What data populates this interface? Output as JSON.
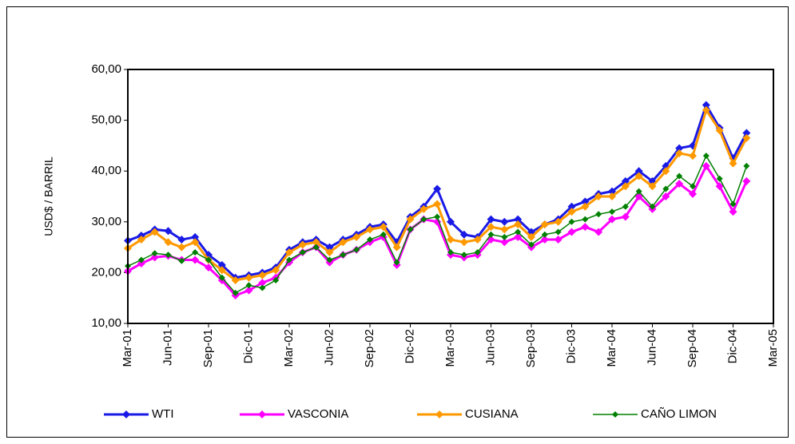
{
  "chart_data": {
    "type": "line",
    "ylabel": "USD$ / BARRIL",
    "x": [
      0,
      1,
      2,
      3,
      4,
      5,
      6,
      7,
      8,
      9,
      10,
      11,
      12,
      13,
      14,
      15,
      16,
      17,
      18,
      19,
      20,
      21,
      22,
      23,
      24,
      25,
      26,
      27,
      28,
      29,
      30,
      31,
      32,
      33,
      34,
      35,
      36,
      37,
      38,
      39,
      40,
      41,
      42,
      43,
      44,
      45,
      46
    ],
    "xlim": [
      0,
      48
    ],
    "xticks": [
      {
        "value": 0,
        "label": "Mar-01"
      },
      {
        "value": 3,
        "label": "Jun-01"
      },
      {
        "value": 6,
        "label": "Sep-01"
      },
      {
        "value": 9,
        "label": "Dic-01"
      },
      {
        "value": 12,
        "label": "Mar-02"
      },
      {
        "value": 15,
        "label": "Jun-02"
      },
      {
        "value": 18,
        "label": "Sep-02"
      },
      {
        "value": 21,
        "label": "Dic-02"
      },
      {
        "value": 24,
        "label": "Mar-03"
      },
      {
        "value": 27,
        "label": "Jun-03"
      },
      {
        "value": 30,
        "label": "Sep-03"
      },
      {
        "value": 33,
        "label": "Dic-03"
      },
      {
        "value": 36,
        "label": "Mar-04"
      },
      {
        "value": 39,
        "label": "Jun-04"
      },
      {
        "value": 42,
        "label": "Sep-04"
      },
      {
        "value": 45,
        "label": "Dic-04"
      },
      {
        "value": 48,
        "label": "Mar-05"
      }
    ],
    "ylim": [
      10,
      60
    ],
    "yticks": [
      {
        "value": 10,
        "label": "10,00"
      },
      {
        "value": 20,
        "label": "20,00"
      },
      {
        "value": 30,
        "label": "30,00"
      },
      {
        "value": 40,
        "label": "40,00"
      },
      {
        "value": 50,
        "label": "50,00"
      },
      {
        "value": 60,
        "label": "60,00"
      }
    ],
    "series": [
      {
        "name": "WTI",
        "color": "#1a1ae6",
        "values": [
          26.3,
          27.3,
          28.5,
          28.2,
          26.5,
          27.0,
          23.5,
          21.5,
          19.0,
          19.5,
          20.0,
          21.0,
          24.5,
          26.0,
          26.5,
          25.0,
          26.5,
          27.5,
          29.0,
          29.5,
          26.0,
          31.0,
          33.0,
          36.5,
          30.0,
          27.5,
          27.0,
          30.5,
          30.0,
          30.5,
          28.0,
          29.5,
          30.5,
          33.0,
          34.0,
          35.5,
          36.0,
          38.0,
          40.0,
          38.0,
          41.0,
          44.5,
          45.0,
          53.0,
          48.5,
          42.5,
          47.5
        ]
      },
      {
        "name": "VASCONIA",
        "color": "#ff00ff",
        "values": [
          20.3,
          21.8,
          23.0,
          23.3,
          22.5,
          22.5,
          21.0,
          18.5,
          15.5,
          16.5,
          18.0,
          19.0,
          22.0,
          24.0,
          25.0,
          22.0,
          23.5,
          24.5,
          26.0,
          27.0,
          21.5,
          28.5,
          30.5,
          30.0,
          23.5,
          23.0,
          23.5,
          26.5,
          26.0,
          27.0,
          25.0,
          26.5,
          26.5,
          28.0,
          29.0,
          28.0,
          30.5,
          31.0,
          35.0,
          32.5,
          35.0,
          37.5,
          35.5,
          41.0,
          37.0,
          32.0,
          38.0
        ]
      },
      {
        "name": "CUSIANA",
        "color": "#ff9900",
        "values": [
          24.8,
          26.5,
          28.0,
          26.0,
          25.0,
          26.0,
          22.5,
          20.5,
          18.5,
          19.0,
          19.5,
          20.5,
          24.0,
          25.5,
          26.0,
          24.0,
          26.0,
          27.0,
          28.5,
          29.0,
          25.0,
          30.5,
          32.5,
          33.5,
          26.5,
          26.0,
          26.5,
          29.0,
          28.5,
          29.5,
          27.0,
          29.5,
          30.0,
          32.0,
          33.0,
          35.0,
          35.0,
          37.0,
          39.0,
          37.0,
          40.0,
          43.5,
          43.0,
          52.0,
          48.0,
          41.5,
          46.5
        ]
      },
      {
        "name": "CAÑO LIMON",
        "color": "#008000",
        "values": [
          21.3,
          22.5,
          23.8,
          23.5,
          22.3,
          24.0,
          22.5,
          19.0,
          16.0,
          17.5,
          17.0,
          18.5,
          22.5,
          24.0,
          25.0,
          22.5,
          23.5,
          24.5,
          26.5,
          27.5,
          22.0,
          28.5,
          30.5,
          31.0,
          24.0,
          23.5,
          24.0,
          27.5,
          27.0,
          28.0,
          25.5,
          27.5,
          28.0,
          30.0,
          30.5,
          31.5,
          32.0,
          33.0,
          36.0,
          33.0,
          36.5,
          39.0,
          37.0,
          43.0,
          38.5,
          33.5,
          41.0
        ]
      }
    ]
  }
}
